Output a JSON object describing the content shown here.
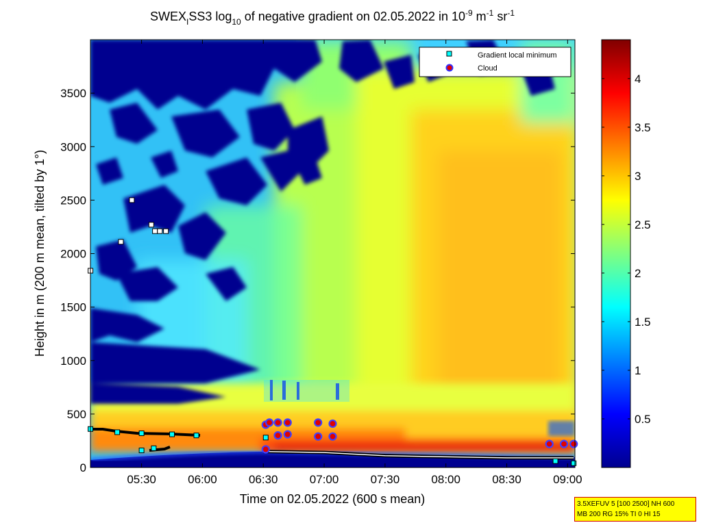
{
  "chart_data": {
    "type": "heatmap",
    "title": {
      "t1": "SWEX",
      "t1_sub": "I",
      "t2": "SS3 log",
      "t2_sub": "10",
      "t3": " of negative gradient on 02.05.2022 in 10",
      "t3_sup1": "-9",
      "t4": " m",
      "t4_sup": "-1",
      "t5": " sr",
      "t5_sup": "-1"
    },
    "xlabel": "Time on 02.05.2022 (600 s mean)",
    "ylabel": "Height in m (200 m mean, tilted by 1°)",
    "x_ticks": [
      {
        "label": "05:30",
        "value": 5.5
      },
      {
        "label": "06:00",
        "value": 6.0
      },
      {
        "label": "06:30",
        "value": 6.5
      },
      {
        "label": "07:00",
        "value": 7.0
      },
      {
        "label": "07:30",
        "value": 7.5
      },
      {
        "label": "08:00",
        "value": 8.0
      },
      {
        "label": "08:30",
        "value": 8.5
      },
      {
        "label": "09:00",
        "value": 9.0
      }
    ],
    "y_ticks": [
      {
        "label": "0",
        "value": 0
      },
      {
        "label": "500",
        "value": 500
      },
      {
        "label": "1000",
        "value": 1000
      },
      {
        "label": "1500",
        "value": 1500
      },
      {
        "label": "2000",
        "value": 2000
      },
      {
        "label": "2500",
        "value": 2500
      },
      {
        "label": "3000",
        "value": 3000
      },
      {
        "label": "3500",
        "value": 3500
      }
    ],
    "xlim_hours": [
      5.08,
      9.06
    ],
    "ylim": [
      0,
      4000
    ],
    "colorbar": {
      "range": [
        0,
        4.4
      ],
      "ticks": [
        {
          "label": "0.5",
          "value": 0.5
        },
        {
          "label": "1",
          "value": 1
        },
        {
          "label": "1.5",
          "value": 1.5
        },
        {
          "label": "2",
          "value": 2
        },
        {
          "label": "2.5",
          "value": 2.5
        },
        {
          "label": "3",
          "value": 3
        },
        {
          "label": "3.5",
          "value": 3.5
        },
        {
          "label": "4",
          "value": 4
        }
      ]
    },
    "legend": {
      "placement": "top-right",
      "entries": [
        {
          "label": "Gradient local minimum",
          "marker": "square",
          "color": "#00ffff"
        },
        {
          "label": "Cloud",
          "marker": "circle",
          "color": "#ff0000"
        }
      ]
    },
    "gradient_minima": [
      {
        "t": 5.08,
        "h": 1840
      },
      {
        "t": 5.33,
        "h": 2110
      },
      {
        "t": 5.42,
        "h": 2500
      },
      {
        "t": 5.58,
        "h": 2270
      },
      {
        "t": 5.61,
        "h": 2210
      },
      {
        "t": 5.65,
        "h": 2210
      },
      {
        "t": 5.7,
        "h": 2210
      },
      {
        "t": 5.08,
        "h": 360
      },
      {
        "t": 5.3,
        "h": 330
      },
      {
        "t": 5.5,
        "h": 320
      },
      {
        "t": 5.75,
        "h": 310
      },
      {
        "t": 5.95,
        "h": 300
      },
      {
        "t": 5.5,
        "h": 160
      },
      {
        "t": 5.6,
        "h": 180
      },
      {
        "t": 6.52,
        "h": 280
      },
      {
        "t": 8.9,
        "h": 60
      },
      {
        "t": 9.05,
        "h": 40
      }
    ],
    "clouds": [
      {
        "t": 6.52,
        "h": 400
      },
      {
        "t": 6.55,
        "h": 420
      },
      {
        "t": 6.62,
        "h": 420
      },
      {
        "t": 6.7,
        "h": 420
      },
      {
        "t": 6.62,
        "h": 300
      },
      {
        "t": 6.7,
        "h": 310
      },
      {
        "t": 6.95,
        "h": 420
      },
      {
        "t": 7.07,
        "h": 410
      },
      {
        "t": 6.95,
        "h": 290
      },
      {
        "t": 7.07,
        "h": 290
      },
      {
        "t": 6.52,
        "h": 170
      },
      {
        "t": 8.85,
        "h": 220
      },
      {
        "t": 8.97,
        "h": 220
      },
      {
        "t": 9.05,
        "h": 220
      }
    ],
    "boundary_layer_top": [
      {
        "t": 6.5,
        "h": 150
      },
      {
        "t": 7.0,
        "h": 140
      },
      {
        "t": 7.5,
        "h": 110
      },
      {
        "t": 8.0,
        "h": 100
      },
      {
        "t": 8.5,
        "h": 90
      },
      {
        "t": 9.05,
        "h": 90
      }
    ]
  },
  "info_box": {
    "line1": "3.5XEFUV 5 [100 2500] NH 600",
    "line2": "MB 200 RG 15% TI 0 HI 15"
  }
}
